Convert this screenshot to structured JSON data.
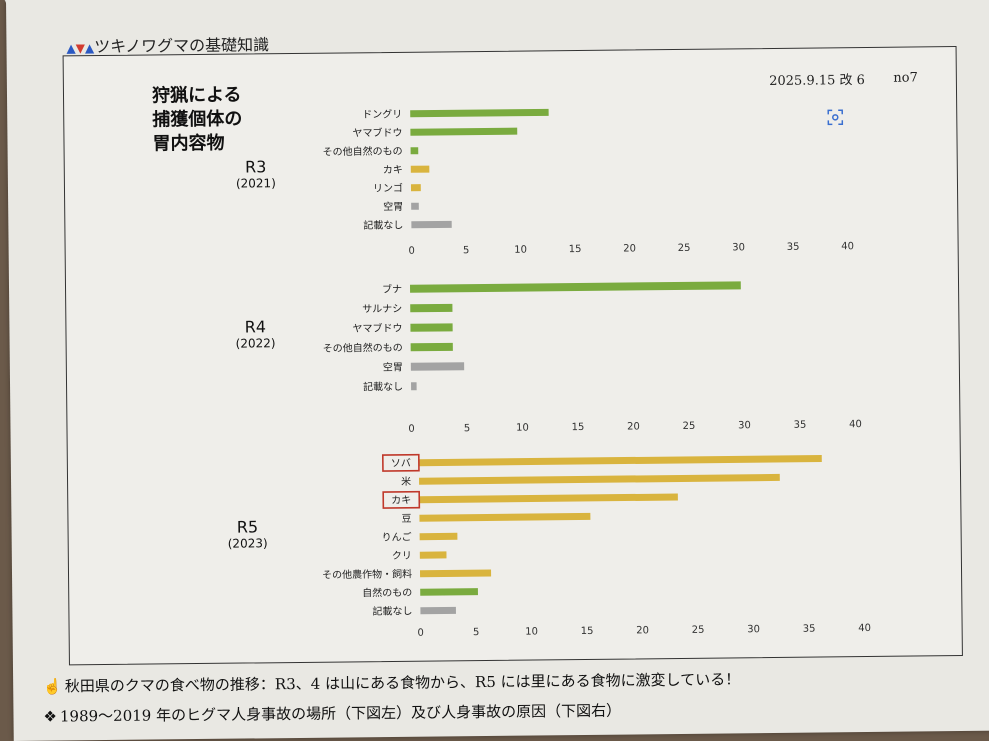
{
  "header": {
    "title": "ツキノワグマの基礎知識",
    "date": "2025.9.15 改 6",
    "doc_no": "no7"
  },
  "heading_lines": [
    "狩猟による",
    "捕獲個体の",
    "胃内容物"
  ],
  "panels": [
    {
      "label": "R3",
      "year": "(2021)"
    },
    {
      "label": "R4",
      "year": "(2022)"
    },
    {
      "label": "R5",
      "year": "(2023)"
    }
  ],
  "captions": {
    "line1": "秋田県のクマの食べ物の推移：R3、4 は山にある食物から、R5 には里にある食物に激変している！",
    "line2": "1989～2019 年のヒグマ人身事故の場所（下図左）及び人身事故の原因（下図右）"
  },
  "colors": {
    "natural": "#7aab3f",
    "crop": "#d9b43e",
    "none": "#a3a3a3",
    "highlight": "#c0392b"
  },
  "chart_data": [
    {
      "type": "bar",
      "orientation": "horizontal",
      "title": "R3 (2021)",
      "xlim": [
        0,
        40
      ],
      "ticks": [
        0,
        5,
        10,
        15,
        20,
        25,
        30,
        35,
        40
      ],
      "categories": [
        "ドングリ",
        "ヤマブドウ",
        "その他自然のもの",
        "カキ",
        "リンゴ",
        "空胃",
        "記載なし"
      ],
      "values": [
        12.7,
        9.8,
        0.7,
        1.7,
        0.9,
        0.7,
        3.7
      ],
      "kinds": [
        "natural",
        "natural",
        "natural",
        "crop",
        "crop",
        "none",
        "none"
      ]
    },
    {
      "type": "bar",
      "orientation": "horizontal",
      "title": "R4 (2022)",
      "xlim": [
        0,
        40
      ],
      "ticks": [
        0,
        5,
        10,
        15,
        20,
        25,
        30,
        35,
        40
      ],
      "categories": [
        "ブナ",
        "サルナシ",
        "ヤマブドウ",
        "その他自然のもの",
        "空胃",
        "記載なし"
      ],
      "values": [
        29.8,
        3.8,
        3.8,
        3.8,
        4.8,
        0.5
      ],
      "kinds": [
        "natural",
        "natural",
        "natural",
        "natural",
        "none",
        "none"
      ]
    },
    {
      "type": "bar",
      "orientation": "horizontal",
      "title": "R5 (2023)",
      "xlim": [
        0,
        40
      ],
      "ticks": [
        0,
        5,
        10,
        15,
        20,
        25,
        30,
        35,
        40
      ],
      "categories": [
        "ソバ",
        "米",
        "カキ",
        "豆",
        "りんご",
        "クリ",
        "その他農作物・飼料",
        "自然のもの",
        "記載なし"
      ],
      "values": [
        36.3,
        32.5,
        23.3,
        15.4,
        3.4,
        2.4,
        6.4,
        5.2,
        3.2
      ],
      "kinds": [
        "crop",
        "crop",
        "crop",
        "crop",
        "crop",
        "crop",
        "crop",
        "natural",
        "none"
      ],
      "highlighted": [
        "ソバ",
        "カキ"
      ]
    }
  ]
}
